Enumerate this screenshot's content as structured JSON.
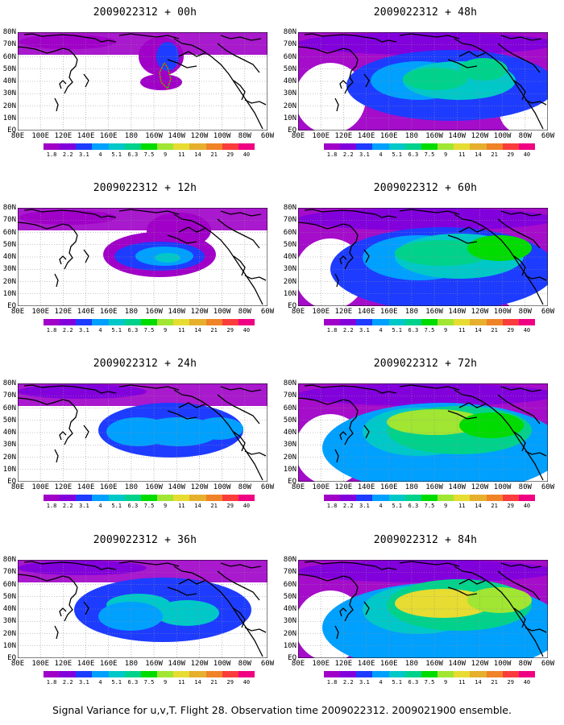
{
  "panels": [
    {
      "title": "2009022312 + 00h",
      "stage": 0
    },
    {
      "title": "2009022312 + 48h",
      "stage": 4
    },
    {
      "title": "2009022312 + 12h",
      "stage": 1
    },
    {
      "title": "2009022312 + 60h",
      "stage": 5
    },
    {
      "title": "2009022312 + 24h",
      "stage": 2
    },
    {
      "title": "2009022312 + 72h",
      "stage": 6
    },
    {
      "title": "2009022312 + 36h",
      "stage": 3
    },
    {
      "title": "2009022312 + 84h",
      "stage": 7
    }
  ],
  "lat_labels": [
    "80N",
    "70N",
    "60N",
    "50N",
    "40N",
    "30N",
    "20N",
    "10N",
    "EQ"
  ],
  "lon_labels": [
    "80E",
    "100E",
    "120E",
    "140E",
    "160E",
    "180",
    "160W",
    "140W",
    "120W",
    "100W",
    "80W",
    "60W"
  ],
  "colorbar": {
    "labels": [
      "1.8",
      "2.2",
      "3.1",
      "4",
      "5.1",
      "6.3",
      "7.5",
      "9",
      "11",
      "14",
      "21",
      "29",
      "40"
    ],
    "colors": [
      "#a000c8",
      "#8200dc",
      "#1e3cff",
      "#00a0ff",
      "#00c8c8",
      "#00d28c",
      "#00dc00",
      "#a0e632",
      "#e6dc32",
      "#e6af2d",
      "#f08228",
      "#fa3c3c",
      "#f00082"
    ]
  },
  "footer": "Signal Variance for u,v,T. Flight 28. Observation time 2009022312. 2009021900 ensemble."
}
